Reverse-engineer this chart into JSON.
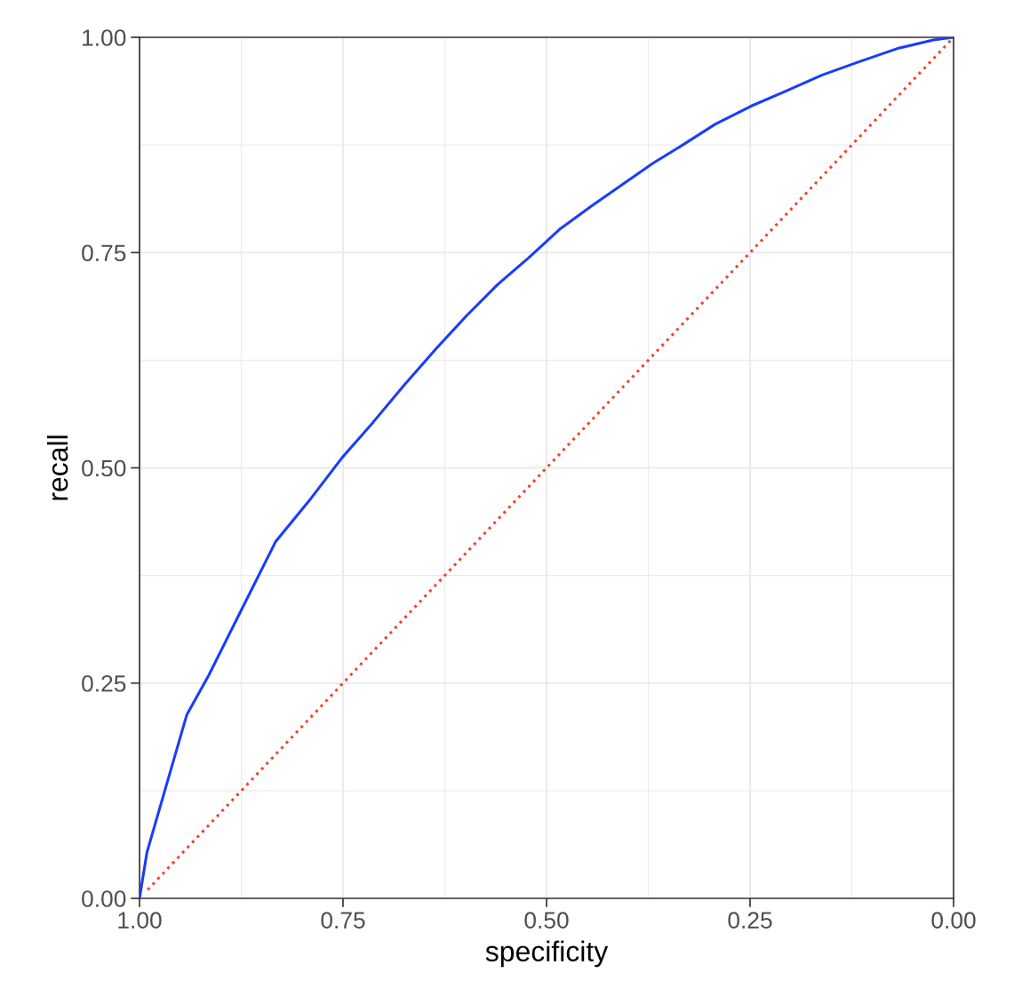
{
  "chart_data": {
    "type": "line",
    "xlabel": "specificity",
    "ylabel": "recall",
    "xlim": [
      1.0,
      0.0
    ],
    "ylim": [
      0.0,
      1.0
    ],
    "xticks": [
      {
        "value": 1.0,
        "label": "1.00"
      },
      {
        "value": 0.75,
        "label": "0.75"
      },
      {
        "value": 0.5,
        "label": "0.50"
      },
      {
        "value": 0.25,
        "label": "0.25"
      },
      {
        "value": 0.0,
        "label": "0.00"
      }
    ],
    "yticks": [
      {
        "value": 0.0,
        "label": "0.00"
      },
      {
        "value": 0.25,
        "label": "0.25"
      },
      {
        "value": 0.5,
        "label": "0.50"
      },
      {
        "value": 0.75,
        "label": "0.75"
      },
      {
        "value": 1.0,
        "label": "1.00"
      }
    ],
    "grid": true,
    "marker": "none",
    "series": [
      {
        "color": "#1a3cff",
        "line_style": "solid",
        "x": [
          1.0,
          0.991,
          0.969,
          0.942,
          0.915,
          0.877,
          0.833,
          0.789,
          0.751,
          0.713,
          0.675,
          0.636,
          0.598,
          0.56,
          0.522,
          0.484,
          0.445,
          0.407,
          0.369,
          0.331,
          0.293,
          0.249,
          0.205,
          0.162,
          0.118,
          0.069,
          0.025,
          0.0
        ],
        "values": [
          0.0,
          0.053,
          0.125,
          0.213,
          0.259,
          0.331,
          0.414,
          0.465,
          0.512,
          0.553,
          0.596,
          0.638,
          0.677,
          0.713,
          0.744,
          0.777,
          0.804,
          0.829,
          0.854,
          0.876,
          0.899,
          0.92,
          0.938,
          0.956,
          0.971,
          0.987,
          0.997,
          1.0
        ]
      },
      {
        "color": "#f0442c",
        "line_style": "dotted",
        "x": [
          0.99,
          0.0
        ],
        "values": [
          0.01,
          1.0
        ]
      }
    ]
  }
}
